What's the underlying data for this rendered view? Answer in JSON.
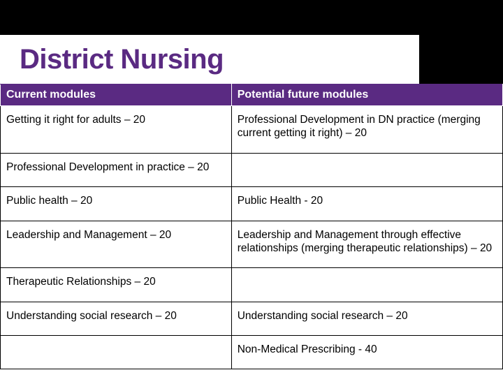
{
  "title": "District Nursing",
  "colors": {
    "topbar_bg": "#000000",
    "title_bg": "#ffffff",
    "title_text": "#5a2a82",
    "header_bg": "#5a2a82",
    "header_text": "#ffffff",
    "cell_bg": "#ffffff",
    "cell_text": "#000000",
    "cell_border": "#000000"
  },
  "typography": {
    "title_fontsize": 40,
    "title_fontweight": 700,
    "header_fontsize": 16,
    "header_fontweight": 700,
    "cell_fontsize": 15.5,
    "cell_fontweight": 400,
    "font_family": "Arial"
  },
  "table": {
    "type": "table",
    "column_widths_pct": [
      46,
      54
    ],
    "columns": [
      "Current modules",
      "Potential future modules"
    ],
    "rows": [
      [
        "Getting it right for adults – 20",
        "Professional Development in DN practice (merging current getting it right) – 20"
      ],
      [
        "Professional Development in practice – 20",
        ""
      ],
      [
        "Public health – 20",
        "Public Health  - 20"
      ],
      [
        "Leadership and Management – 20",
        "Leadership and Management through effective relationships (merging therapeutic relationships) – 20"
      ],
      [
        "Therapeutic Relationships – 20",
        ""
      ],
      [
        "Understanding social research – 20",
        "Understanding social research – 20"
      ],
      [
        "",
        "Non-Medical Prescribing - 40"
      ]
    ]
  }
}
